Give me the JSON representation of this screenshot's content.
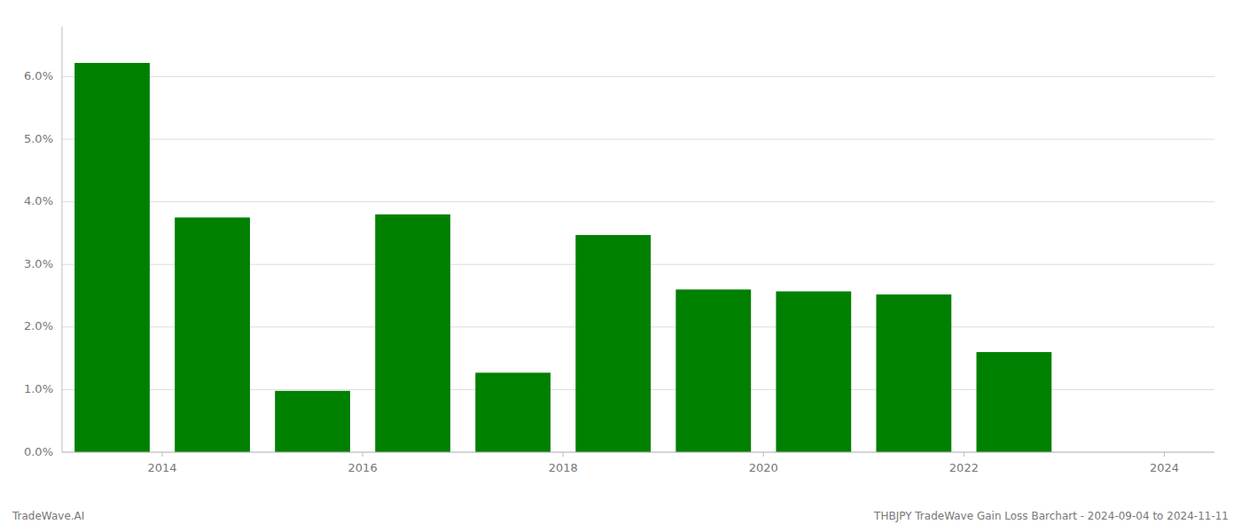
{
  "chart_data": {
    "type": "bar",
    "title": "THBJPY TradeWave Gain Loss Barchart - 2024-09-04 to 2024-11-11",
    "annotations": [
      "TradeWave.AI"
    ],
    "x": [
      2013.5,
      2014.5,
      2015.5,
      2016.5,
      2017.5,
      2018.5,
      2019.5,
      2020.5,
      2021.5,
      2022.5
    ],
    "values": [
      0.0622,
      0.0375,
      0.0098,
      0.038,
      0.0127,
      0.0347,
      0.026,
      0.0257,
      0.0252,
      0.016
    ],
    "color": "#008000",
    "xlim": [
      2013.0,
      2024.5
    ],
    "ylim": [
      0,
      0.068
    ],
    "xticks": [
      2014,
      2016,
      2018,
      2020,
      2022,
      2024
    ],
    "yticks": [
      {
        "value": 0.0,
        "label": "0.0%"
      },
      {
        "value": 0.01,
        "label": "1.0%"
      },
      {
        "value": 0.02,
        "label": "2.0%"
      },
      {
        "value": 0.03,
        "label": "3.0%"
      },
      {
        "value": 0.04,
        "label": "4.0%"
      },
      {
        "value": 0.05,
        "label": "5.0%"
      },
      {
        "value": 0.06,
        "label": "6.0%"
      }
    ],
    "grid": true
  }
}
